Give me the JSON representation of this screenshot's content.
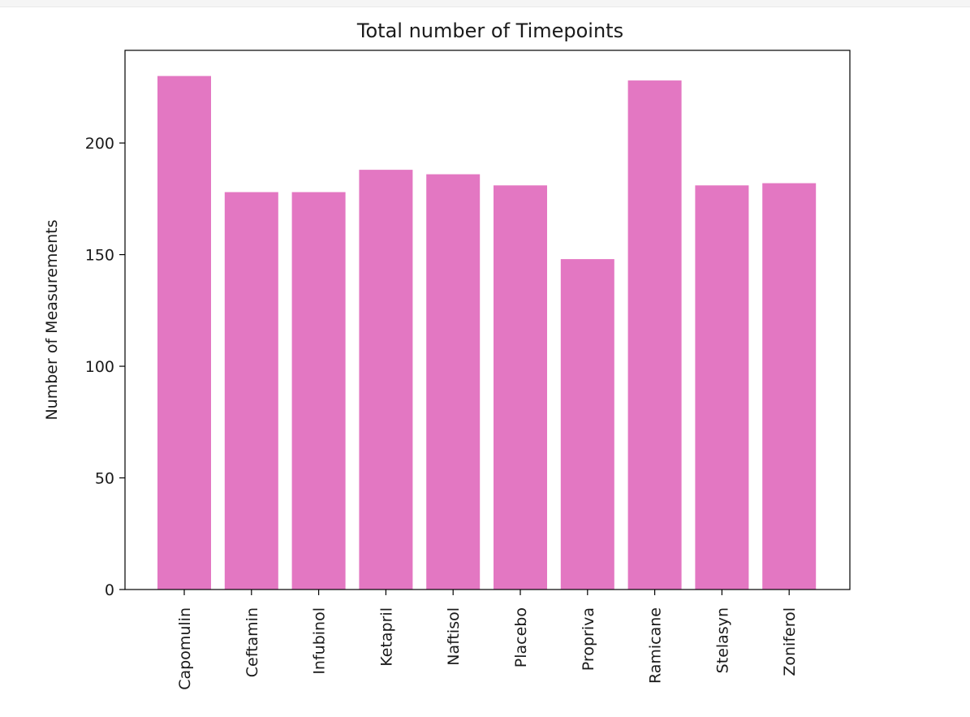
{
  "chart_data": {
    "type": "bar",
    "title": "Total number of Timepoints",
    "xlabel": "",
    "ylabel": "Number of Measurements",
    "categories": [
      "Capomulin",
      "Ceftamin",
      "Infubinol",
      "Ketapril",
      "Naftisol",
      "Placebo",
      "Propriva",
      "Ramicane",
      "Stelasyn",
      "Zoniferol"
    ],
    "values": [
      230,
      178,
      178,
      188,
      186,
      181,
      148,
      228,
      181,
      182
    ],
    "yticks": [
      0,
      50,
      100,
      150,
      200
    ],
    "ylim": [
      0,
      241.5
    ],
    "bar_color": "#e377c2",
    "grid": false,
    "legend": "none"
  }
}
